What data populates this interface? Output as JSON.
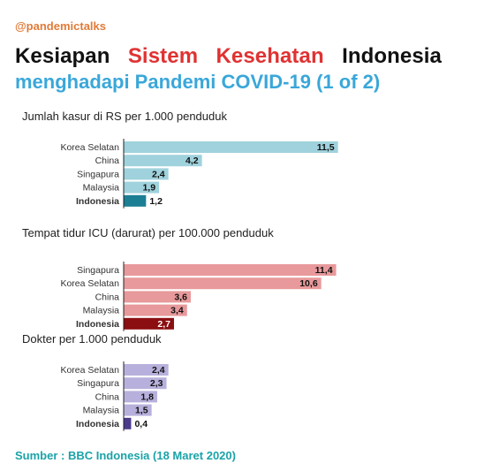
{
  "header": {
    "handle": "@pandemictalks",
    "title_line1": [
      "Kesiapan",
      "Sistem",
      "Kesehatan",
      "Indonesia"
    ],
    "title_line2": "menghadapi Pandemi COVID-19 (1 of 2)"
  },
  "colors": {
    "handle": "#e07b39",
    "title_dark": "#111111",
    "title_red": "#e03232",
    "title_blue": "#3aa7d9",
    "source": "#1aa3a8",
    "beds_bar": "#9fd2dc",
    "beds_highlight": "#1c7f94",
    "icu_bar": "#e8999b",
    "icu_highlight": "#8b0e10",
    "doctors_bar": "#b8b0dc",
    "doctors_highlight": "#4b3a8c"
  },
  "chart_data": [
    {
      "type": "bar",
      "orientation": "horizontal",
      "title": "Jumlah kasur di RS per 1.000 penduduk",
      "categories": [
        "Korea Selatan",
        "China",
        "Singapura",
        "Malaysia",
        "Indonesia"
      ],
      "values": [
        11.5,
        4.2,
        2.4,
        1.9,
        1.2
      ],
      "value_labels": [
        "11,5",
        "4,2",
        "2,4",
        "1,9",
        "1,2"
      ],
      "highlight": "Indonesia",
      "xlim": [
        0,
        12
      ]
    },
    {
      "type": "bar",
      "orientation": "horizontal",
      "title": "Tempat tidur ICU (darurat) per 100.000 penduduk",
      "categories": [
        "Singapura",
        "Korea Selatan",
        "China",
        "Malaysia",
        "Indonesia"
      ],
      "values": [
        11.4,
        10.6,
        3.6,
        3.4,
        2.7
      ],
      "value_labels": [
        "11,4",
        "10,6",
        "3,6",
        "3,4",
        "2,7"
      ],
      "highlight": "Indonesia",
      "xlim": [
        0,
        12
      ]
    },
    {
      "type": "bar",
      "orientation": "horizontal",
      "title": "Dokter per 1.000 penduduk",
      "categories": [
        "Korea Selatan",
        "Singapura",
        "China",
        "Malaysia",
        "Indonesia"
      ],
      "values": [
        2.4,
        2.3,
        1.8,
        1.5,
        0.4
      ],
      "value_labels": [
        "2,4",
        "2,3",
        "1,8",
        "1,5",
        "0,4"
      ],
      "highlight": "Indonesia",
      "xlim": [
        0,
        12
      ]
    }
  ],
  "source": "Sumber : BBC Indonesia (18 Maret 2020)"
}
